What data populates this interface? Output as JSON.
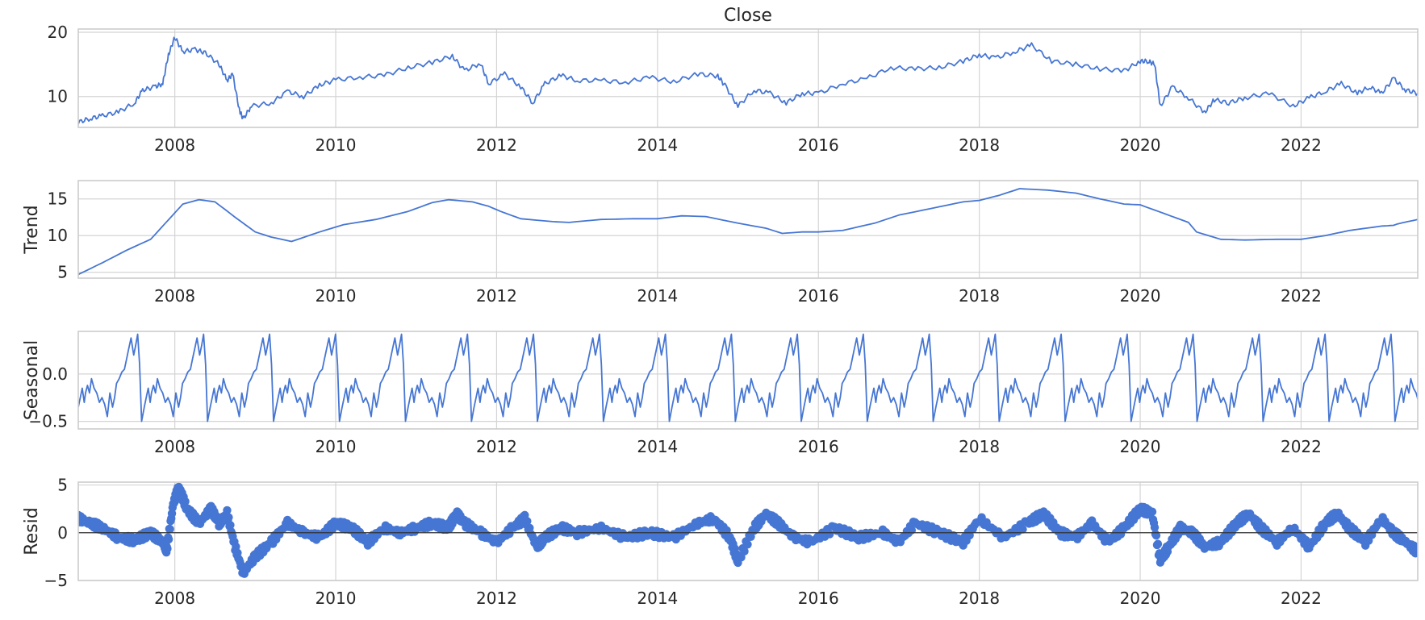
{
  "chart_data": [
    {
      "type": "line",
      "title": "Close",
      "ylabel": "",
      "xlim": [
        2006.8,
        2023.45
      ],
      "ylim": [
        5.2,
        20.5
      ],
      "yticks": [
        10,
        20
      ],
      "xticks": [
        2008,
        2010,
        2012,
        2014,
        2016,
        2018,
        2020,
        2022
      ],
      "grid": true,
      "color": "#4676d3",
      "x": [
        2006.8,
        2006.95,
        2007.1,
        2007.3,
        2007.5,
        2007.6,
        2007.75,
        2007.85,
        2007.92,
        2008.0,
        2008.1,
        2008.25,
        2008.38,
        2008.55,
        2008.65,
        2008.72,
        2008.8,
        2008.85,
        2008.95,
        2009.2,
        2009.4,
        2009.6,
        2009.8,
        2010.0,
        2010.3,
        2010.6,
        2010.9,
        2011.2,
        2011.45,
        2011.6,
        2011.8,
        2011.9,
        2012.1,
        2012.3,
        2012.45,
        2012.6,
        2012.8,
        2013.0,
        2013.3,
        2013.6,
        2013.9,
        2014.2,
        2014.5,
        2014.75,
        2014.85,
        2015.0,
        2015.2,
        2015.4,
        2015.6,
        2015.8,
        2016.0,
        2016.3,
        2016.6,
        2016.9,
        2017.2,
        2017.5,
        2017.8,
        2018.0,
        2018.2,
        2018.45,
        2018.65,
        2018.9,
        2019.2,
        2019.5,
        2019.8,
        2020.0,
        2020.1,
        2020.18,
        2020.25,
        2020.4,
        2020.6,
        2020.8,
        2020.92,
        2021.1,
        2021.3,
        2021.6,
        2021.9,
        2022.1,
        2022.3,
        2022.5,
        2022.7,
        2022.85,
        2023.0,
        2023.15,
        2023.3,
        2023.45
      ],
      "values": [
        6.0,
        6.6,
        7.0,
        7.6,
        9.0,
        11.0,
        11.5,
        12.0,
        16.5,
        19.2,
        17.0,
        17.3,
        16.8,
        15.0,
        12.5,
        13.5,
        8.0,
        6.5,
        8.5,
        9.0,
        10.8,
        10.0,
        11.8,
        12.6,
        13.0,
        13.3,
        14.5,
        15.3,
        16.3,
        14.0,
        15.2,
        12.0,
        13.5,
        11.5,
        9.0,
        12.0,
        13.3,
        12.5,
        12.5,
        12.2,
        13.0,
        12.3,
        13.5,
        13.2,
        11.5,
        8.5,
        11.0,
        10.5,
        9.0,
        10.5,
        10.5,
        12.0,
        12.8,
        14.5,
        14.3,
        14.5,
        15.5,
        16.5,
        16.0,
        17.0,
        18.0,
        15.5,
        15.0,
        14.3,
        14.0,
        15.5,
        15.5,
        15.0,
        8.5,
        11.5,
        9.8,
        7.5,
        9.5,
        9.0,
        9.8,
        10.5,
        8.5,
        9.8,
        10.8,
        12.0,
        10.5,
        11.5,
        10.5,
        12.8,
        11.0,
        10.5
      ]
    },
    {
      "type": "line",
      "title": "",
      "ylabel": "Trend",
      "xlim": [
        2006.8,
        2023.45
      ],
      "ylim": [
        4.2,
        17.5
      ],
      "yticks": [
        5,
        10,
        15
      ],
      "xticks": [
        2008,
        2010,
        2012,
        2014,
        2016,
        2018,
        2020,
        2022
      ],
      "grid": true,
      "color": "#4676d3",
      "x": [
        2006.8,
        2007.1,
        2007.4,
        2007.7,
        2007.95,
        2008.1,
        2008.3,
        2008.5,
        2008.75,
        2009.0,
        2009.2,
        2009.45,
        2009.8,
        2010.1,
        2010.5,
        2010.9,
        2011.2,
        2011.4,
        2011.7,
        2011.9,
        2012.05,
        2012.3,
        2012.7,
        2012.9,
        2013.3,
        2013.7,
        2014.0,
        2014.3,
        2014.6,
        2015.0,
        2015.35,
        2015.55,
        2015.8,
        2016.0,
        2016.3,
        2016.7,
        2017.0,
        2017.4,
        2017.8,
        2018.0,
        2018.25,
        2018.5,
        2018.85,
        2019.2,
        2019.5,
        2019.8,
        2020.0,
        2020.3,
        2020.6,
        2020.7,
        2021.0,
        2021.3,
        2021.7,
        2022.0,
        2022.3,
        2022.6,
        2022.8,
        2023.0,
        2023.15,
        2023.2,
        2023.45
      ],
      "values": [
        4.7,
        6.3,
        8.0,
        9.5,
        12.5,
        14.3,
        14.9,
        14.6,
        12.5,
        10.5,
        9.8,
        9.2,
        10.5,
        11.5,
        12.2,
        13.3,
        14.5,
        14.9,
        14.6,
        14.0,
        13.3,
        12.3,
        11.9,
        11.8,
        12.2,
        12.3,
        12.3,
        12.7,
        12.6,
        11.7,
        11.0,
        10.3,
        10.5,
        10.5,
        10.7,
        11.7,
        12.8,
        13.7,
        14.6,
        14.8,
        15.5,
        16.4,
        16.2,
        15.8,
        15.0,
        14.3,
        14.2,
        13.0,
        11.8,
        10.5,
        9.5,
        9.4,
        9.5,
        9.5,
        10.0,
        10.7,
        11.0,
        11.3,
        11.4,
        11.6,
        12.2
      ]
    },
    {
      "type": "line",
      "title": "",
      "ylabel": "Seasonal",
      "xlim": [
        2006.8,
        2023.45
      ],
      "ylim": [
        -0.58,
        0.45
      ],
      "yticks": [
        -0.5,
        0.0
      ],
      "ytick_labels": [
        "−0.5",
        "0.0"
      ],
      "xticks": [
        2008,
        2010,
        2012,
        2014,
        2016,
        2018,
        2020,
        2022
      ],
      "grid": true,
      "color": "#4676d3",
      "period_years": 0.82,
      "x_cycle_frac": [
        0.0,
        0.03,
        0.06,
        0.09,
        0.11,
        0.14,
        0.17,
        0.2,
        0.24,
        0.28,
        0.32,
        0.36,
        0.4,
        0.44,
        0.48,
        0.52,
        0.55,
        0.58,
        0.62,
        0.66,
        0.7,
        0.73,
        0.76,
        0.8,
        0.84,
        0.87,
        0.9,
        0.93,
        0.96,
        1.0
      ],
      "cycle_values": [
        -0.35,
        -0.25,
        -0.15,
        -0.3,
        -0.2,
        -0.12,
        -0.2,
        -0.05,
        -0.15,
        -0.2,
        -0.3,
        -0.25,
        -0.32,
        -0.45,
        -0.2,
        -0.35,
        -0.25,
        -0.1,
        -0.05,
        0.02,
        0.05,
        0.15,
        0.25,
        0.38,
        0.2,
        0.3,
        0.42,
        0.1,
        -0.5,
        -0.35
      ]
    },
    {
      "type": "scatter",
      "title": "",
      "ylabel": "Resid",
      "xlim": [
        2006.8,
        2023.45
      ],
      "ylim": [
        -5.0,
        5.3
      ],
      "yticks": [
        -5,
        0,
        5
      ],
      "ytick_labels": [
        "−5",
        "0",
        "5"
      ],
      "xticks": [
        2008,
        2010,
        2012,
        2014,
        2016,
        2018,
        2020,
        2022
      ],
      "grid": true,
      "zero_line": true,
      "color": "#4676d3",
      "x": [
        2006.8,
        2006.95,
        2007.1,
        2007.3,
        2007.5,
        2007.7,
        2007.85,
        2007.9,
        2007.98,
        2008.05,
        2008.15,
        2008.3,
        2008.45,
        2008.55,
        2008.65,
        2008.75,
        2008.85,
        2009.0,
        2009.2,
        2009.4,
        2009.6,
        2009.8,
        2010.0,
        2010.2,
        2010.4,
        2010.6,
        2010.8,
        2011.0,
        2011.2,
        2011.4,
        2011.5,
        2011.6,
        2011.8,
        2012.0,
        2012.2,
        2012.35,
        2012.5,
        2012.6,
        2012.8,
        2013.0,
        2013.3,
        2013.6,
        2013.9,
        2014.2,
        2014.5,
        2014.7,
        2014.9,
        2015.0,
        2015.2,
        2015.35,
        2015.5,
        2015.7,
        2015.9,
        2016.2,
        2016.5,
        2016.8,
        2017.0,
        2017.2,
        2017.5,
        2017.8,
        2018.0,
        2018.3,
        2018.6,
        2018.8,
        2019.0,
        2019.2,
        2019.4,
        2019.6,
        2019.8,
        2020.0,
        2020.15,
        2020.25,
        2020.35,
        2020.5,
        2020.65,
        2020.8,
        2021.0,
        2021.2,
        2021.35,
        2021.5,
        2021.7,
        2021.9,
        2022.1,
        2022.3,
        2022.45,
        2022.6,
        2022.8,
        2023.0,
        2023.15,
        2023.3,
        2023.45
      ],
      "values": [
        1.5,
        1.0,
        0.5,
        -0.5,
        -0.8,
        0.0,
        -1.0,
        -1.8,
        3.0,
        4.8,
        2.5,
        1.0,
        2.5,
        1.0,
        2.0,
        -1.5,
        -4.2,
        -2.5,
        -1.0,
        1.0,
        0.0,
        -0.5,
        1.0,
        0.5,
        -1.0,
        0.5,
        0.0,
        0.5,
        1.0,
        0.5,
        2.0,
        1.0,
        0.0,
        -1.0,
        0.5,
        1.5,
        -1.5,
        -0.5,
        0.5,
        0.0,
        0.5,
        -0.5,
        0.0,
        -0.5,
        1.0,
        1.5,
        -0.5,
        -3.0,
        0.5,
        2.0,
        1.0,
        -0.5,
        -1.0,
        0.5,
        -0.5,
        0.0,
        -1.0,
        1.0,
        0.0,
        -1.0,
        1.5,
        -0.5,
        1.0,
        2.0,
        0.0,
        -0.5,
        1.0,
        -1.0,
        0.5,
        2.5,
        2.0,
        -3.0,
        -1.5,
        0.5,
        0.0,
        -1.5,
        -1.0,
        1.0,
        2.0,
        0.5,
        -1.0,
        0.5,
        -1.5,
        1.0,
        2.0,
        0.5,
        -1.0,
        1.5,
        0.0,
        -1.0,
        -2.0
      ]
    }
  ]
}
